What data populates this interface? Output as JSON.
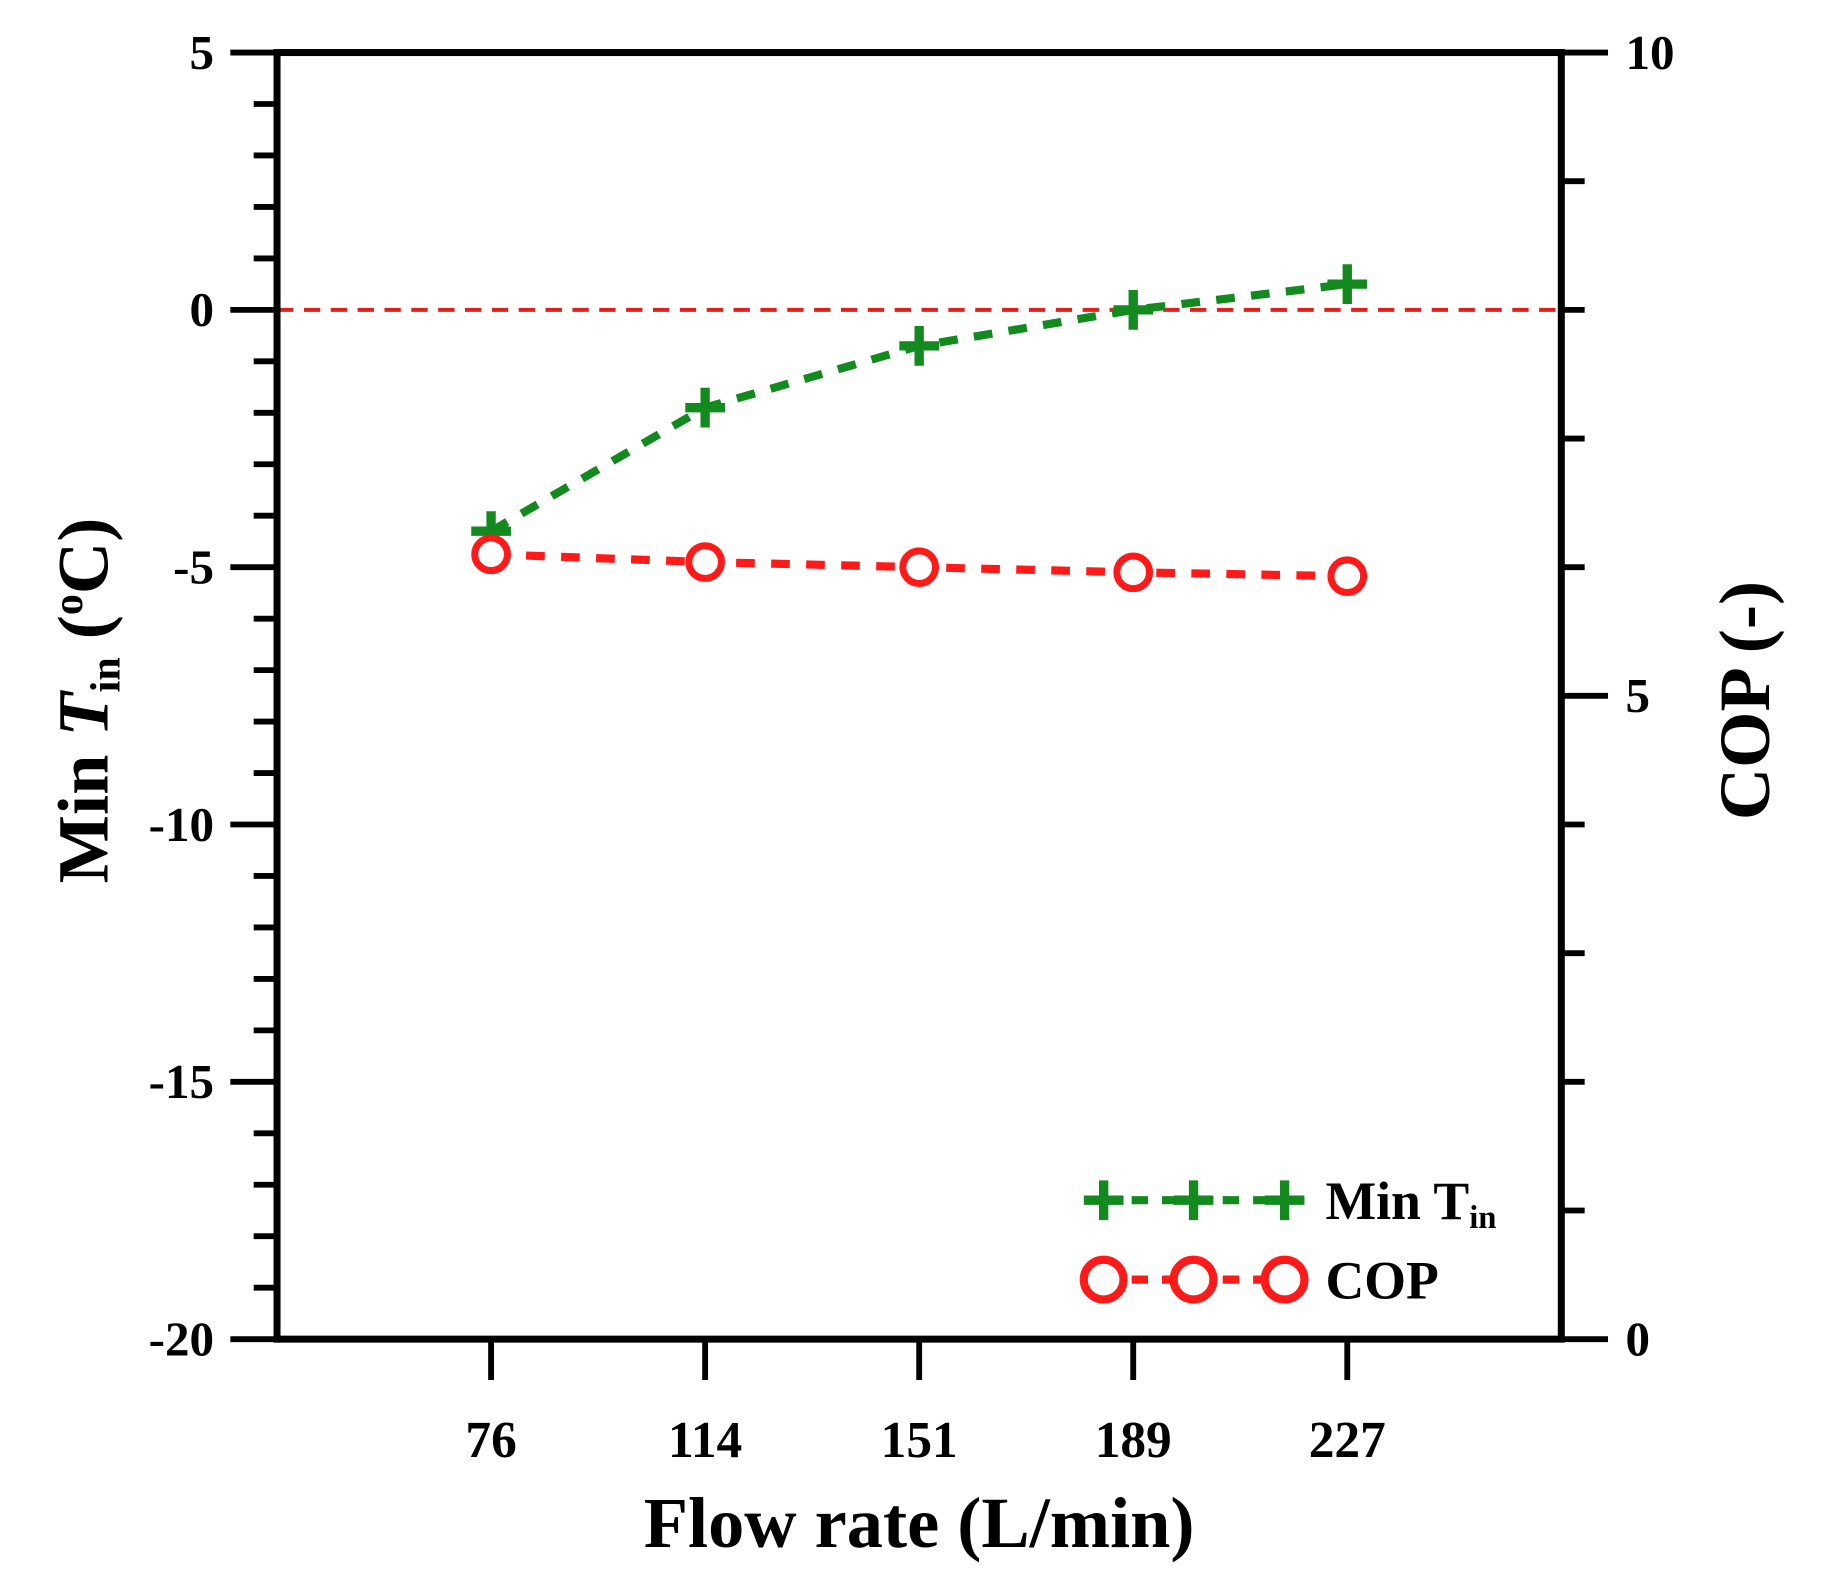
{
  "chart_data": {
    "type": "line",
    "title": "",
    "xlabel": "Flow rate (L/min)",
    "ylabel_left": {
      "prefix": "Min ",
      "var": "T",
      "sub": "in",
      "suffix": " (",
      "sup": "o",
      "unit": "C)"
    },
    "ylabel_right": "COP (-)",
    "categories": [
      "76",
      "114",
      "151",
      "189",
      "227"
    ],
    "ylim_left": [
      -20,
      5
    ],
    "yticks_left": [
      "5",
      "0",
      "-5",
      "-10",
      "-15",
      "-20"
    ],
    "ylim_right": [
      0,
      10
    ],
    "yticks_right": [
      "10",
      "5",
      "0"
    ],
    "reference_line": {
      "y": 0,
      "axis": "left",
      "color": "#e0201b",
      "style": "dashed"
    },
    "series": [
      {
        "name": "Min T",
        "name_sub": "in",
        "axis": "left",
        "marker": "plus",
        "color": "#138a1e",
        "values": [
          -4.3,
          -1.9,
          -0.7,
          0.0,
          0.5
        ]
      },
      {
        "name": "COP",
        "axis": "right",
        "marker": "circle",
        "color": "#ff1a1a",
        "values": [
          6.1,
          6.04,
          6.0,
          5.96,
          5.93
        ]
      }
    ],
    "legend": "bottom-right",
    "grid": false
  }
}
